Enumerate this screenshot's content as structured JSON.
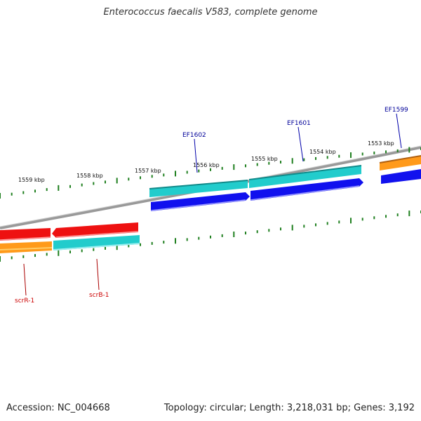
{
  "title": "Enterococcus faecalis V583, complete genome",
  "footer": {
    "accession": "Accession: NC_004668",
    "stats": "Topology: circular; Length: 3,218,031 bp; Genes: 3,192"
  },
  "colors": {
    "backbone": "#8a8a8a",
    "tick": "#1f7f1f",
    "red_feature": "#ee1111",
    "cyan_feature": "#22cccc",
    "blue_feature": "#1111ee",
    "orange_feature": "#ff9a1a",
    "outer_label": "#000099",
    "inner_label": "#cc0000"
  },
  "ticks_outer": [
    "1559 kbp",
    "1558 kbp",
    "1557 kbp",
    "1556 kbp",
    "1555 kbp",
    "1554 kbp",
    "1553 kbp"
  ],
  "ticks_inner": [],
  "gene_labels_outer": [
    "EF1602",
    "EF1601",
    "EF1599"
  ],
  "gene_labels_inner": [
    "scrR-1",
    "scrB-1"
  ],
  "features_outer_cyan": [
    "EF1602",
    "EF1601"
  ],
  "features_outer_blue": [
    "EF1602",
    "EF1601",
    "EF1599"
  ],
  "features_outer_orange": [
    "EF1599"
  ],
  "features_inner_red": [
    "scrR-1",
    "scrB-1"
  ],
  "features_inner_orange": [
    "scrR-1"
  ],
  "features_inner_cyan": [
    "scrB-1"
  ]
}
